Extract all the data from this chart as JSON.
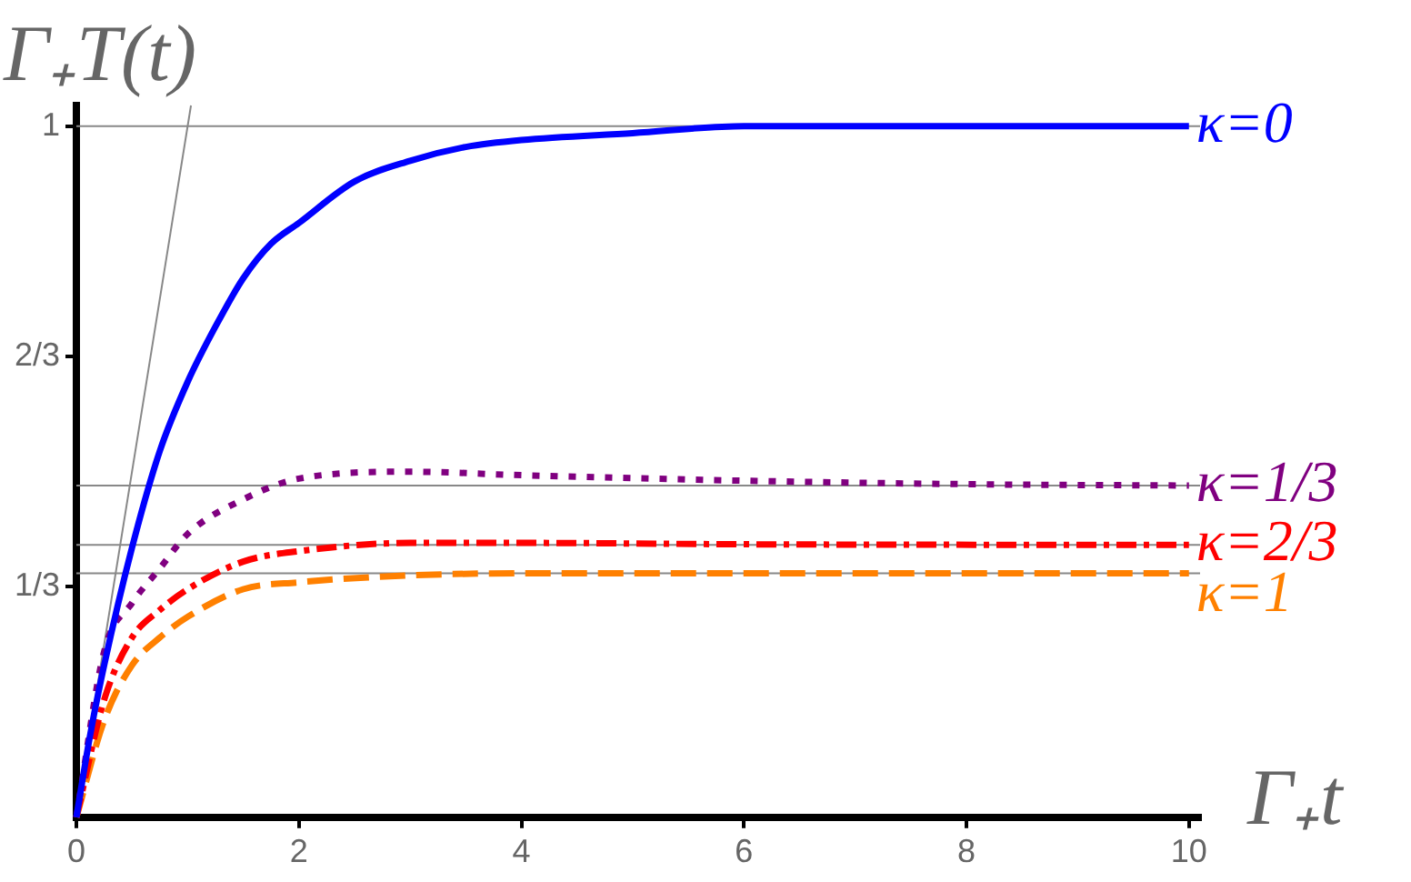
{
  "chart_data": {
    "type": "line",
    "xlabel": "Γ₊t",
    "ylabel": "Γ₊T(t)",
    "xlim": [
      0,
      10.1
    ],
    "xticks": [
      0,
      2,
      4,
      6,
      8,
      10
    ],
    "ylim": [
      0,
      1.03
    ],
    "yticks": [
      {
        "value": 0.3333,
        "label": "1/3"
      },
      {
        "value": 0.6667,
        "label": "2/3"
      },
      1
    ],
    "grid": false,
    "legend": false,
    "marker": "none",
    "ref_lines": [
      {
        "axis": "y",
        "value": 1,
        "color": "#888888"
      },
      {
        "axis": "y",
        "value": 0.48,
        "color": "#888888"
      },
      {
        "axis": "y",
        "value": 0.394,
        "color": "#888888"
      },
      {
        "axis": "y",
        "value": 0.353,
        "color": "#888888"
      }
    ],
    "series": [
      {
        "name": "κ=0",
        "color": "#0000ff",
        "line_style": "solid",
        "x": [
          0,
          0.125,
          0.25,
          0.5,
          0.75,
          1,
          1.25,
          1.5,
          1.75,
          2,
          2.5,
          3,
          3.5,
          4,
          5,
          6,
          8,
          10
        ],
        "values": [
          0,
          0.12,
          0.22,
          0.39,
          0.53,
          0.63,
          0.71,
          0.78,
          0.83,
          0.86,
          0.92,
          0.95,
          0.97,
          0.98,
          0.99,
          1.0,
          1.0,
          1.0
        ]
      },
      {
        "name": "κ=1/3",
        "color": "#800080",
        "line_style": "dotted",
        "x": [
          0,
          0.25,
          0.5,
          0.75,
          1,
          1.5,
          2,
          3,
          4,
          6,
          8,
          10
        ],
        "values": [
          0,
          0.24,
          0.31,
          0.36,
          0.41,
          0.46,
          0.49,
          0.5,
          0.495,
          0.487,
          0.482,
          0.48
        ]
      },
      {
        "name": "κ=2/3",
        "color": "#ff0000",
        "line_style": "dashdot",
        "x": [
          0,
          0.25,
          0.5,
          0.75,
          1,
          1.5,
          2,
          3,
          4,
          6,
          10
        ],
        "values": [
          0,
          0.17,
          0.26,
          0.3,
          0.33,
          0.37,
          0.385,
          0.397,
          0.397,
          0.395,
          0.394
        ]
      },
      {
        "name": "κ=1",
        "color": "#ff8000",
        "line_style": "dashed",
        "x": [
          0,
          0.25,
          0.5,
          0.75,
          1,
          1.5,
          2,
          3,
          4,
          10
        ],
        "values": [
          0,
          0.14,
          0.22,
          0.26,
          0.29,
          0.33,
          0.34,
          0.35,
          0.353,
          0.353
        ]
      },
      {
        "color": "#888888",
        "line_style": "solid",
        "x": [
          0,
          1.03
        ],
        "values": [
          0,
          1.03
        ]
      }
    ]
  }
}
